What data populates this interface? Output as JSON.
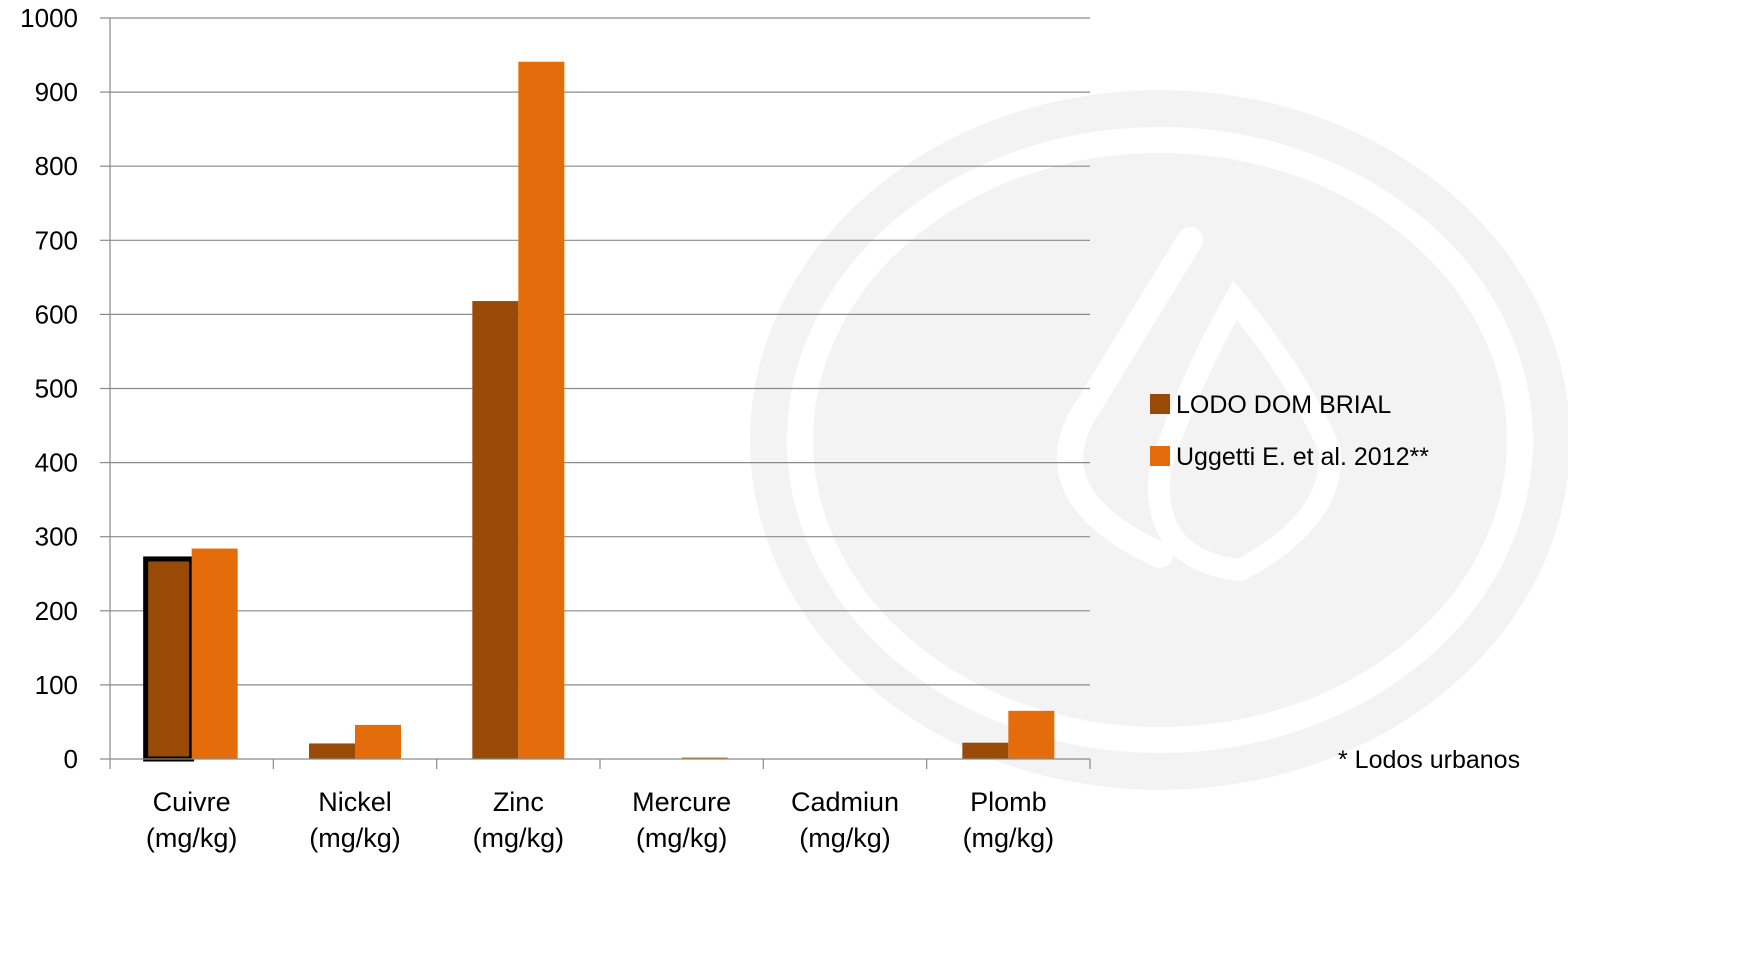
{
  "chart_data": {
    "type": "bar",
    "categories": [
      [
        "Cuivre",
        "(mg/kg)"
      ],
      [
        "Nickel",
        "(mg/kg)"
      ],
      [
        "Zinc",
        "(mg/kg)"
      ],
      [
        "Mercure",
        "(mg/kg)"
      ],
      [
        "Cadmiun",
        "(mg/kg)"
      ],
      [
        "Plomb",
        "(mg/kg)"
      ]
    ],
    "series": [
      {
        "name": "LODO DOM BRIAL",
        "color": "#9a4a07",
        "values": [
          270,
          21,
          618,
          0,
          0,
          22
        ]
      },
      {
        "name": "Uggetti E. et al. 2012**",
        "color": "#e46c0a",
        "values": [
          284,
          46,
          941,
          2,
          0,
          65
        ]
      }
    ],
    "ylim": [
      0,
      1000
    ],
    "yticks": [
      0,
      100,
      200,
      300,
      400,
      500,
      600,
      700,
      800,
      900,
      1000
    ],
    "grid": true,
    "legend_position": "right",
    "highlighted_bar": {
      "series": 0,
      "category": 0
    }
  },
  "note": "* Lodos urbanos",
  "watermark": "drop-in-circle-watermark"
}
